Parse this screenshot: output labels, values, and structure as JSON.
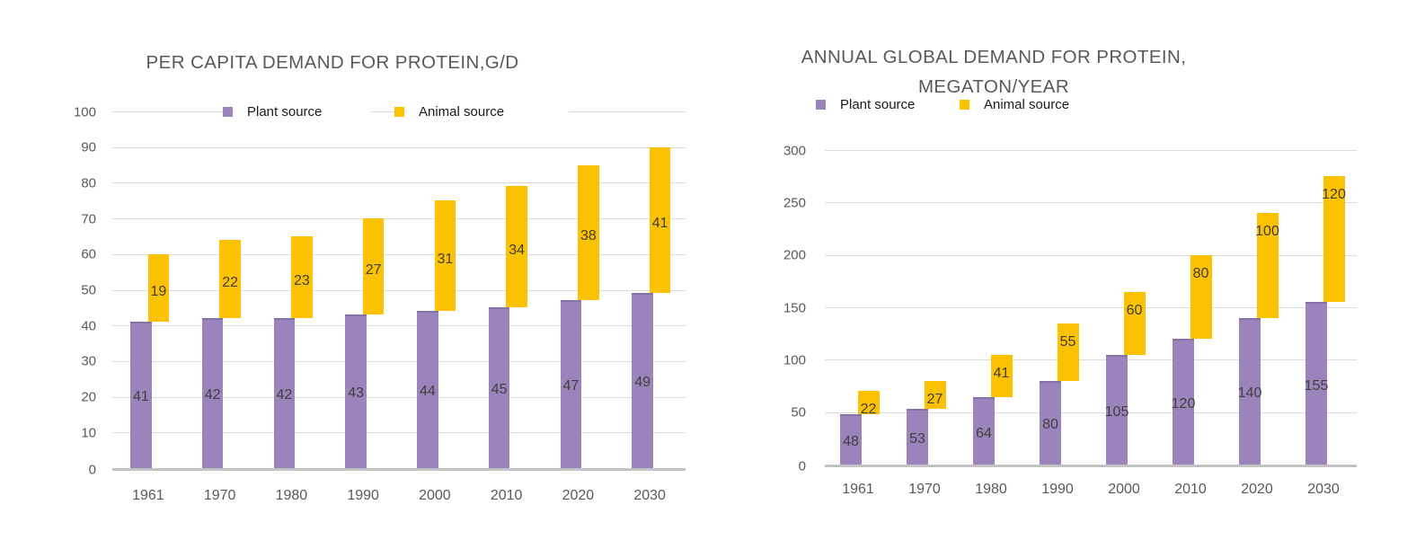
{
  "chart_data": [
    {
      "type": "bar",
      "subtype": "stacked-offset",
      "title": "PER CAPITA DEMAND FOR PROTEIN,G/D",
      "title_lines": [
        "PER CAPITA DEMAND FOR PROTEIN,G/D"
      ],
      "categories": [
        "1961",
        "1970",
        "1980",
        "1990",
        "2000",
        "2010",
        "2020",
        "2030"
      ],
      "series": [
        {
          "name": "Plant source",
          "color": "#9a84bb",
          "values": [
            41,
            42,
            42,
            43,
            44,
            45,
            47,
            49
          ]
        },
        {
          "name": "Animal source",
          "color": "#fcc101",
          "values": [
            19,
            22,
            23,
            27,
            31,
            34,
            38,
            41
          ]
        }
      ],
      "xlabel": "",
      "ylabel": "",
      "ylim": [
        0,
        100
      ],
      "ytick_step": 10,
      "y_ticks": [
        0,
        10,
        20,
        30,
        40,
        50,
        60,
        70,
        80,
        90,
        100
      ],
      "grid": true,
      "legend_position": "top-inside",
      "data_labels": true,
      "colors": {
        "gridline": "#dcdcdc",
        "axis_line": "#c3c3c3",
        "tick_text": "#595959",
        "data_label_text": "#3f3f3f",
        "title_text": "#595959"
      }
    },
    {
      "type": "bar",
      "subtype": "stacked-offset",
      "title": "ANNUAL GLOBAL DEMAND FOR PROTEIN, MEGATON/YEAR",
      "title_lines": [
        "ANNUAL GLOBAL DEMAND FOR PROTEIN,",
        "MEGATON/YEAR"
      ],
      "categories": [
        "1961",
        "1970",
        "1980",
        "1990",
        "2000",
        "2010",
        "2020",
        "2030"
      ],
      "series": [
        {
          "name": "Plant source",
          "color": "#9a84bb",
          "values": [
            48,
            53,
            64,
            80,
            105,
            120,
            140,
            155
          ]
        },
        {
          "name": "Animal source",
          "color": "#fcc101",
          "values": [
            22,
            27,
            41,
            55,
            60,
            80,
            100,
            120
          ]
        }
      ],
      "xlabel": "",
      "ylabel": "",
      "ylim": [
        0,
        300
      ],
      "ytick_step": 50,
      "y_ticks": [
        0,
        50,
        100,
        150,
        200,
        250,
        300
      ],
      "grid": true,
      "legend_position": "top",
      "data_labels": true,
      "colors": {
        "gridline": "#dcdcdc",
        "axis_line": "#c3c3c3",
        "tick_text": "#595959",
        "data_label_text": "#3f3f3f",
        "title_text": "#595959"
      }
    }
  ]
}
